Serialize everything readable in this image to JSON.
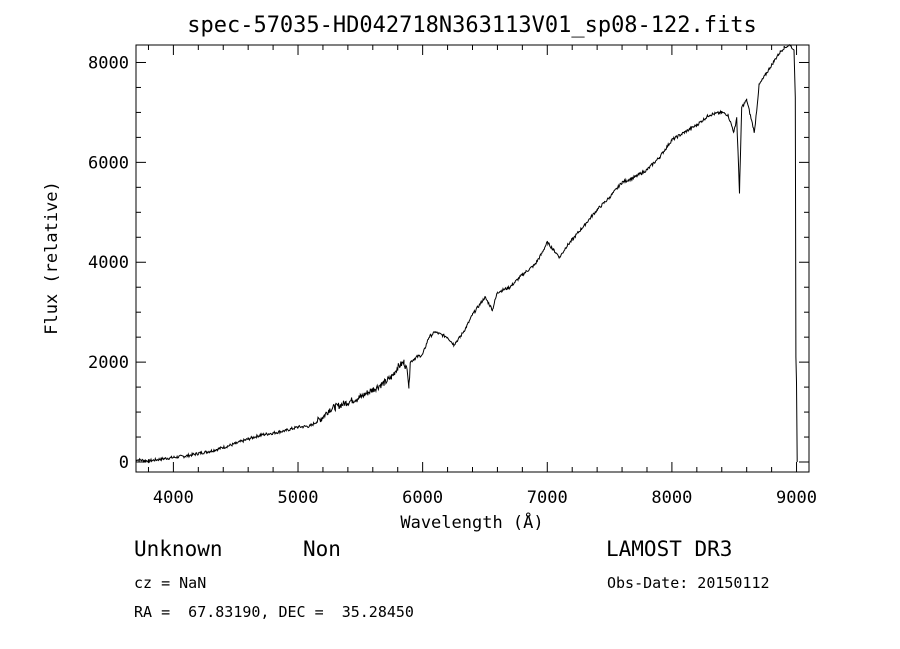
{
  "chart_data": {
    "type": "line",
    "title": "spec-57035-HD042718N363113V01_sp08-122.fits",
    "xlabel": "Wavelength (Å)",
    "ylabel": "Flux (relative)",
    "xlim": [
      3700,
      9100
    ],
    "ylim": [
      -200,
      8350
    ],
    "x_ticks": [
      4000,
      5000,
      6000,
      7000,
      8000,
      9000
    ],
    "y_ticks": [
      0,
      2000,
      4000,
      6000,
      8000
    ],
    "grid": false,
    "series": [
      {
        "x": [
          3700,
          3800,
          3900,
          4000,
          4100,
          4200,
          4300,
          4400,
          4500,
          4600,
          4700,
          4800,
          4900,
          5000,
          5100,
          5200,
          5250,
          5300,
          5400,
          5500,
          5600,
          5700,
          5750,
          5800,
          5850,
          5880,
          5890,
          5900,
          5950,
          6000,
          6050,
          6100,
          6200,
          6250,
          6300,
          6350,
          6400,
          6500,
          6560,
          6600,
          6700,
          6800,
          6900,
          6950,
          7000,
          7050,
          7100,
          7150,
          7200,
          7300,
          7400,
          7500,
          7600,
          7700,
          7800,
          7900,
          8000,
          8100,
          8200,
          8300,
          8400,
          8450,
          8498,
          8520,
          8542,
          8560,
          8600,
          8662,
          8700,
          8800,
          8850,
          8900,
          8950,
          8980,
          8990,
          8995,
          9000,
          9005
        ],
        "y": [
          50,
          20,
          60,
          90,
          120,
          170,
          220,
          290,
          370,
          460,
          540,
          580,
          630,
          700,
          720,
          900,
          1050,
          1100,
          1200,
          1300,
          1450,
          1600,
          1700,
          1900,
          2000,
          1800,
          1500,
          2000,
          2100,
          2150,
          2500,
          2600,
          2500,
          2350,
          2500,
          2700,
          2950,
          3300,
          3050,
          3400,
          3500,
          3750,
          3950,
          4150,
          4400,
          4250,
          4100,
          4300,
          4450,
          4750,
          5050,
          5300,
          5600,
          5700,
          5850,
          6100,
          6450,
          6600,
          6750,
          6950,
          7000,
          6950,
          6600,
          6900,
          5400,
          7100,
          7250,
          6600,
          7550,
          7950,
          8150,
          8300,
          8350,
          8250,
          7300,
          2100,
          1600,
          0
        ]
      }
    ]
  },
  "info": {
    "class": "Unknown",
    "subclass": "Non",
    "survey": "LAMOST DR3",
    "cz": "cz = NaN",
    "obs_date": "Obs-Date: 20150112",
    "coords": "RA =  67.83190, DEC =  35.28450"
  }
}
